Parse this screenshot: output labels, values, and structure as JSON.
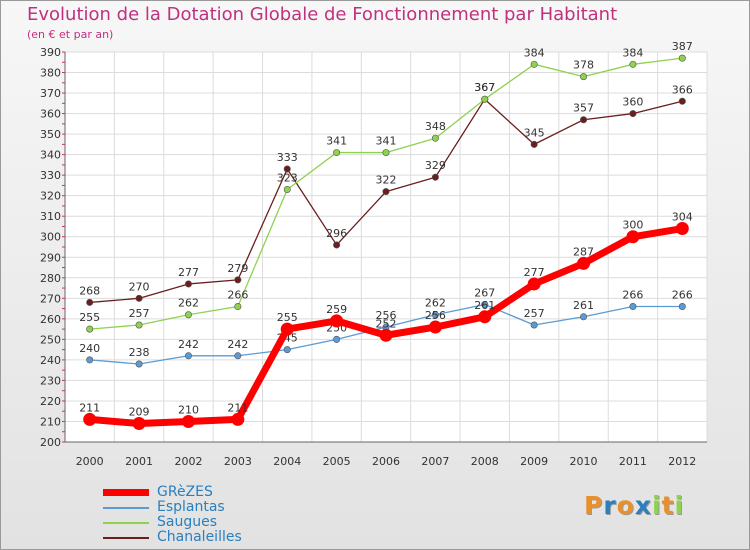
{
  "chart_data": {
    "type": "line",
    "title": "Evolution de la Dotation Globale de Fonctionnement par Habitant",
    "subtitle": "(en € et par an)",
    "xlabel": "",
    "ylabel": "",
    "x": [
      "2000",
      "2001",
      "2002",
      "2003",
      "2004",
      "2005",
      "2006",
      "2007",
      "2008",
      "2009",
      "2010",
      "2011",
      "2012"
    ],
    "ylim": [
      200,
      390
    ],
    "yticks": [
      200,
      210,
      220,
      230,
      240,
      250,
      260,
      270,
      280,
      290,
      300,
      310,
      320,
      330,
      340,
      350,
      360,
      370,
      380,
      390
    ],
    "grid": true,
    "legend_position": "bottom-left",
    "series": [
      {
        "name": "GRèZES",
        "color": "#ff0000",
        "values": [
          211,
          209,
          210,
          211,
          255,
          259,
          252,
          256,
          261,
          277,
          287,
          300,
          304
        ]
      },
      {
        "name": "Esplantas",
        "color": "#5b9bd5",
        "values": [
          240,
          238,
          242,
          242,
          245,
          250,
          256,
          262,
          267,
          257,
          261,
          266,
          266
        ]
      },
      {
        "name": "Saugues",
        "color": "#8ed24e",
        "values": [
          255,
          257,
          262,
          266,
          323,
          341,
          341,
          348,
          367,
          384,
          378,
          384,
          387
        ]
      },
      {
        "name": "Chanaleilles",
        "color": "#6b1e1e",
        "values": [
          268,
          270,
          277,
          279,
          333,
          296,
          322,
          329,
          367,
          345,
          357,
          360,
          366
        ]
      }
    ]
  },
  "logo": {
    "letters": [
      "P",
      "r",
      "o",
      "x",
      "i",
      "t",
      "i"
    ],
    "colors": [
      "#e8912c",
      "#2a7fbd",
      "#e8912c",
      "#2a7fbd",
      "#8ed24e",
      "#e8912c",
      "#8ed24e"
    ]
  }
}
